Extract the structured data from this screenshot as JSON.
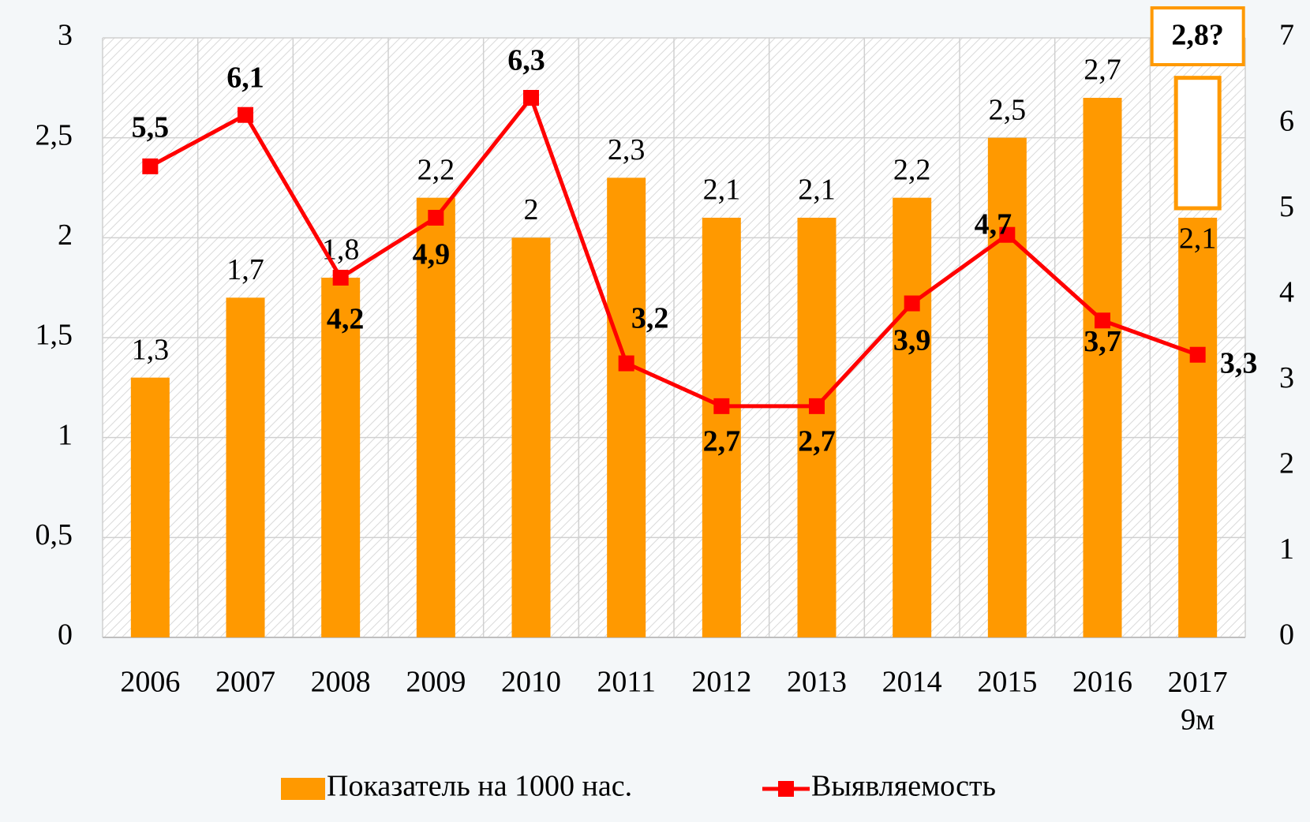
{
  "chart_data": {
    "type": "bar_line",
    "categories": [
      "2006",
      "2007",
      "2008",
      "2009",
      "2010",
      "2011",
      "2012",
      "2013",
      "2014",
      "2015",
      "2016",
      "2017\n9м"
    ],
    "series": [
      {
        "name": "Показатель на 1000 нас.",
        "color": "#ff9900",
        "type": "bar",
        "values": [
          1.3,
          1.7,
          1.8,
          2.2,
          2,
          2.3,
          2.1,
          2.1,
          2.2,
          2.5,
          2.7,
          2.1
        ],
        "value_labels": [
          "1,3",
          "1,7",
          "1,8",
          "2,2",
          "2",
          "2,3",
          "2,1",
          "2,1",
          "2,2",
          "2,5",
          "2,7",
          "2,1"
        ]
      },
      {
        "name": "Выявляемость",
        "color": "#ff0000",
        "type": "line",
        "axis": "y2",
        "values": [
          5.5,
          6.1,
          4.2,
          4.9,
          6.3,
          3.2,
          2.7,
          2.7,
          3.9,
          4.7,
          3.7,
          3.3
        ],
        "value_labels": [
          "5,5",
          "6,1",
          "4,2",
          "4,9",
          "6,3",
          "3,2",
          "2,7",
          "2,7",
          "3,9",
          "4,7",
          "3,7",
          "3,3"
        ]
      }
    ],
    "annotation": {
      "text": "2,8?",
      "value": 2.8
    },
    "ylim": [
      0,
      3
    ],
    "yticks": [
      0,
      {
        "value": 0.5,
        "label": "0,5"
      },
      1,
      {
        "value": 1.5,
        "label": "1,5"
      },
      2,
      {
        "value": 2.5,
        "label": "2,5"
      },
      3
    ],
    "y2lim": [
      0,
      7
    ],
    "y2ticks": [
      0,
      1,
      2,
      3,
      4,
      5,
      6,
      7
    ],
    "legend": "bottom"
  }
}
